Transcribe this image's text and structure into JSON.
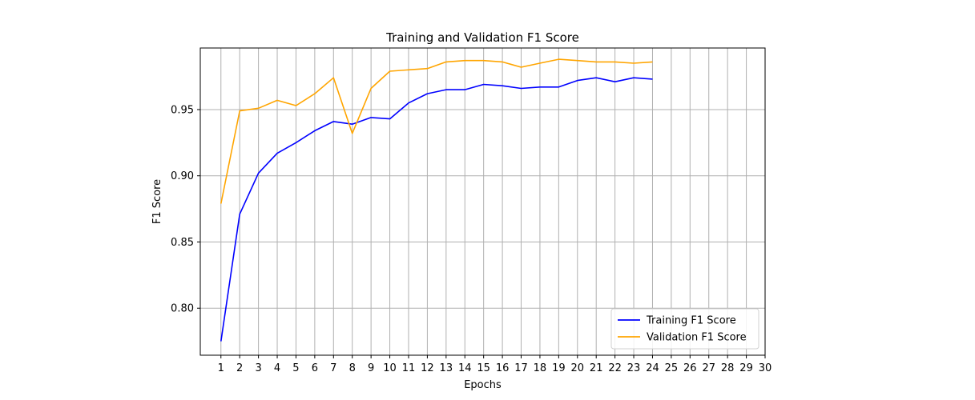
{
  "chart_data": {
    "type": "line",
    "title": "Training and Validation F1 Score",
    "xlabel": "Epochs",
    "ylabel": "F1 Score",
    "x_ticks": [
      1,
      2,
      3,
      4,
      5,
      6,
      7,
      8,
      9,
      10,
      11,
      12,
      13,
      14,
      15,
      16,
      17,
      18,
      19,
      20,
      21,
      22,
      23,
      24,
      25,
      26,
      27,
      28,
      29,
      30
    ],
    "y_ticks": [
      0.8,
      0.85,
      0.9,
      0.95
    ],
    "xlim": [
      -0.1,
      30
    ],
    "ylim": [
      0.7645,
      0.9965
    ],
    "grid": true,
    "legend_position": "lower-right",
    "series": [
      {
        "name": "Training F1 Score",
        "color": "#0000ff",
        "x": [
          1,
          2,
          3,
          4,
          5,
          6,
          7,
          8,
          9,
          10,
          11,
          12,
          13,
          14,
          15,
          16,
          17,
          18,
          19,
          20,
          21,
          22,
          23,
          24
        ],
        "values": [
          0.775,
          0.871,
          0.902,
          0.917,
          0.925,
          0.934,
          0.941,
          0.939,
          0.944,
          0.943,
          0.955,
          0.962,
          0.965,
          0.965,
          0.969,
          0.968,
          0.966,
          0.967,
          0.967,
          0.972,
          0.974,
          0.971,
          0.974,
          0.973
        ]
      },
      {
        "name": "Validation F1 Score",
        "color": "#ffa500",
        "x": [
          1,
          2,
          3,
          4,
          5,
          6,
          7,
          8,
          9,
          10,
          11,
          12,
          13,
          14,
          15,
          16,
          17,
          18,
          19,
          20,
          21,
          22,
          23,
          24
        ],
        "values": [
          0.879,
          0.949,
          0.951,
          0.957,
          0.953,
          0.962,
          0.974,
          0.932,
          0.966,
          0.979,
          0.98,
          0.981,
          0.986,
          0.987,
          0.987,
          0.986,
          0.982,
          0.985,
          0.988,
          0.987,
          0.986,
          0.986,
          0.985,
          0.986
        ]
      }
    ]
  }
}
